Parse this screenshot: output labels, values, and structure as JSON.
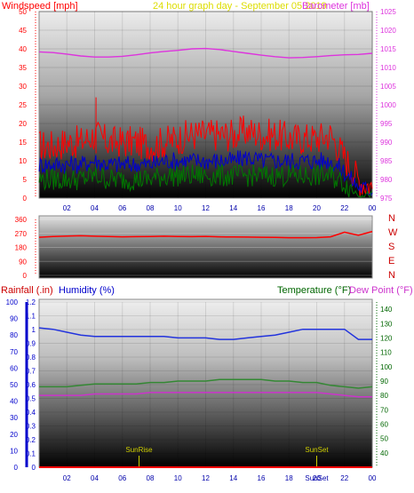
{
  "headers": {
    "windspeed": "Windspeed [mph]",
    "subtitle": "24 hour graph day - September 05 2019",
    "barometer": "Barometer [mb]",
    "rainfall": "Rainfall (.in)",
    "humidity": "Humidity (%)",
    "temperature": "Temperature (°F)",
    "dewpoint": "Dew Point (°F)",
    "sunrise": "SunRise",
    "sunset": "SunSet",
    "sunset_axis": "SunSet"
  },
  "colors": {
    "wind_gust": "#ff0000",
    "wind_avg": "#0000cc",
    "wind_low": "#007700",
    "barometer": "#dd33dd",
    "direction": "#ff0000",
    "humidity": "#2233dd",
    "temperature": "#338833",
    "dewpoint": "#cc33cc",
    "subtitle": "#dddd00",
    "sun_marker": "#cccc00"
  },
  "chart_data": [
    {
      "type": "line",
      "xlabel_ticks": [
        "02",
        "04",
        "06",
        "08",
        "10",
        "12",
        "14",
        "16",
        "18",
        "20",
        "22",
        "00"
      ],
      "y_left_label": "Windspeed [mph]",
      "y_left_ticks": [
        "0",
        "5",
        "10",
        "15",
        "20",
        "25",
        "30",
        "35",
        "40",
        "45",
        "50"
      ],
      "ylim_left": [
        0,
        50
      ],
      "y_right_label": "Barometer [mb]",
      "y_right_ticks": [
        "975",
        "980",
        "985",
        "990",
        "995",
        "1000",
        "1005",
        "1010",
        "1015",
        "1020",
        "1025"
      ],
      "ylim_right": [
        975,
        1025
      ],
      "x": [
        0,
        1,
        2,
        3,
        4,
        5,
        6,
        7,
        8,
        9,
        10,
        11,
        12,
        13,
        14,
        15,
        16,
        17,
        18,
        19,
        20,
        21,
        22,
        23,
        24
      ],
      "series": [
        {
          "name": "",
          "axis": "left",
          "role": "gust",
          "values": [
            14,
            14,
            15,
            15,
            17,
            15,
            15,
            15,
            14,
            15,
            16,
            17,
            17,
            17,
            17,
            18,
            17,
            17,
            16,
            16,
            16,
            17,
            11,
            5,
            3
          ]
        },
        {
          "name": "",
          "axis": "left",
          "role": "average",
          "values": [
            9,
            9,
            9,
            9,
            10,
            9,
            9,
            9,
            9,
            10,
            10,
            10,
            10,
            10,
            10,
            11,
            10,
            10,
            10,
            10,
            10,
            10,
            7,
            3,
            2
          ]
        },
        {
          "name": "",
          "axis": "left",
          "role": "lull",
          "values": [
            5,
            5,
            5,
            5,
            6,
            5,
            5,
            5,
            5,
            6,
            6,
            6,
            6,
            6,
            6,
            6,
            6,
            6,
            6,
            6,
            6,
            6,
            4,
            1,
            1
          ]
        },
        {
          "name": "",
          "axis": "right",
          "role": "barometer",
          "values": [
            1014.2,
            1014,
            1013.6,
            1013.1,
            1012.8,
            1012.8,
            1013,
            1013.4,
            1013.9,
            1014.3,
            1014.6,
            1015,
            1015.1,
            1014.8,
            1014.3,
            1013.8,
            1013.3,
            1012.9,
            1012.6,
            1012.7,
            1012.9,
            1013.2,
            1013.4,
            1013.5,
            1013.8
          ]
        }
      ]
    },
    {
      "type": "line",
      "ylim": [
        0,
        360
      ],
      "y_ticks": [
        "0",
        "90",
        "180",
        "270",
        "360"
      ],
      "compass_labels": [
        "N",
        "W",
        "S",
        "E",
        "N"
      ],
      "x": [
        0,
        1,
        2,
        3,
        4,
        5,
        6,
        7,
        8,
        9,
        10,
        11,
        12,
        13,
        14,
        15,
        16,
        17,
        18,
        19,
        20,
        21,
        22,
        23,
        24
      ],
      "series": [
        {
          "name": "",
          "role": "wind direction",
          "values": [
            245,
            250,
            253,
            255,
            252,
            250,
            248,
            249,
            250,
            252,
            250,
            249,
            251,
            248,
            247,
            246,
            245,
            244,
            242,
            242,
            243,
            248,
            278,
            258,
            282
          ]
        }
      ]
    },
    {
      "type": "line",
      "xlabel_ticks": [
        "02",
        "04",
        "06",
        "08",
        "10",
        "12",
        "14",
        "16",
        "18",
        "20",
        "22",
        "00"
      ],
      "y_rain_ticks": [
        "0",
        "0.1",
        "0.2",
        "0.3",
        "0.4",
        "0.5",
        "0.6",
        "0.7",
        "0.8",
        "0.9",
        "1",
        "1.1",
        "1.2"
      ],
      "ylim_rain": [
        0,
        1.2
      ],
      "y_humidity_ticks": [
        "0",
        "10",
        "20",
        "30",
        "40",
        "50",
        "60",
        "70",
        "80",
        "90",
        "100"
      ],
      "ylim_humidity": [
        0,
        100
      ],
      "y_temp_ticks": [
        "40",
        "50",
        "60",
        "70",
        "80",
        "90",
        "100",
        "110",
        "120",
        "130",
        "140"
      ],
      "ylim_temp": [
        30,
        145
      ],
      "x": [
        0,
        1,
        2,
        3,
        4,
        5,
        6,
        7,
        8,
        9,
        10,
        11,
        12,
        13,
        14,
        15,
        16,
        17,
        18,
        19,
        20,
        21,
        22,
        23,
        24
      ],
      "series": [
        {
          "name": "",
          "axis": "temp",
          "role": "humidity trace",
          "values": [
            127,
            126,
            124,
            122,
            121,
            121,
            121,
            121,
            121,
            121,
            120,
            120,
            120,
            119,
            119,
            120,
            121,
            122,
            124,
            126,
            126,
            126,
            126,
            119,
            119
          ]
        },
        {
          "name": "",
          "axis": "temp",
          "role": "temperature",
          "values": [
            86,
            86,
            86,
            87,
            88,
            88,
            88,
            88,
            89,
            89,
            90,
            90,
            90,
            91,
            91,
            91,
            91,
            90,
            90,
            89,
            89,
            87,
            86,
            85,
            86
          ]
        },
        {
          "name": "",
          "axis": "temp",
          "role": "dew point",
          "values": [
            80,
            80,
            80,
            80,
            81,
            81,
            81,
            81,
            82,
            82,
            82,
            82,
            82,
            82,
            82,
            82,
            82,
            82,
            82,
            82,
            82,
            81,
            80,
            79,
            79
          ]
        },
        {
          "name": "",
          "axis": "rain",
          "role": "rainfall",
          "values": [
            0,
            0,
            0,
            0,
            0,
            0,
            0,
            0,
            0,
            0,
            0,
            0,
            0,
            0,
            0,
            0,
            0,
            0,
            0,
            0,
            0,
            0,
            0,
            0,
            0
          ]
        }
      ],
      "markers": [
        {
          "label": "SunRise",
          "x": 7.2
        },
        {
          "label": "SunSet",
          "x": 20.0
        }
      ]
    }
  ]
}
